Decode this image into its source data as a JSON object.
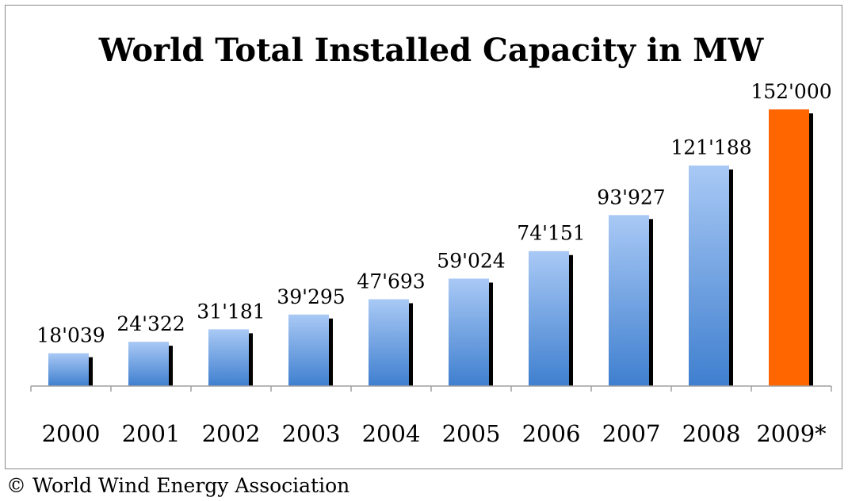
{
  "chart_data": {
    "type": "bar",
    "title": "World Total Installed Capacity in MW",
    "categories": [
      "2000",
      "2001",
      "2002",
      "2003",
      "2004",
      "2005",
      "2006",
      "2007",
      "2008",
      "2009*"
    ],
    "values": [
      18039,
      24322,
      31181,
      39295,
      47693,
      59024,
      74151,
      93927,
      121188,
      152000
    ],
    "data_labels": [
      "18'039",
      "24'322",
      "31'181",
      "39'295",
      "47'693",
      "59'024",
      "74'151",
      "93'927",
      "121'188",
      "152'000"
    ],
    "ylim": [
      0,
      152000
    ],
    "xlabel": "",
    "ylabel": "",
    "grid": false,
    "legend": "none",
    "colors": {
      "bar_top": "#a9c9f5",
      "bar_bottom": "#3f7fcf",
      "highlight": "#ff6600",
      "bar_shadow": "#000000",
      "axis": "#a0a0a0"
    }
  },
  "footer": {
    "copyright": "© World Wind Energy Association"
  }
}
